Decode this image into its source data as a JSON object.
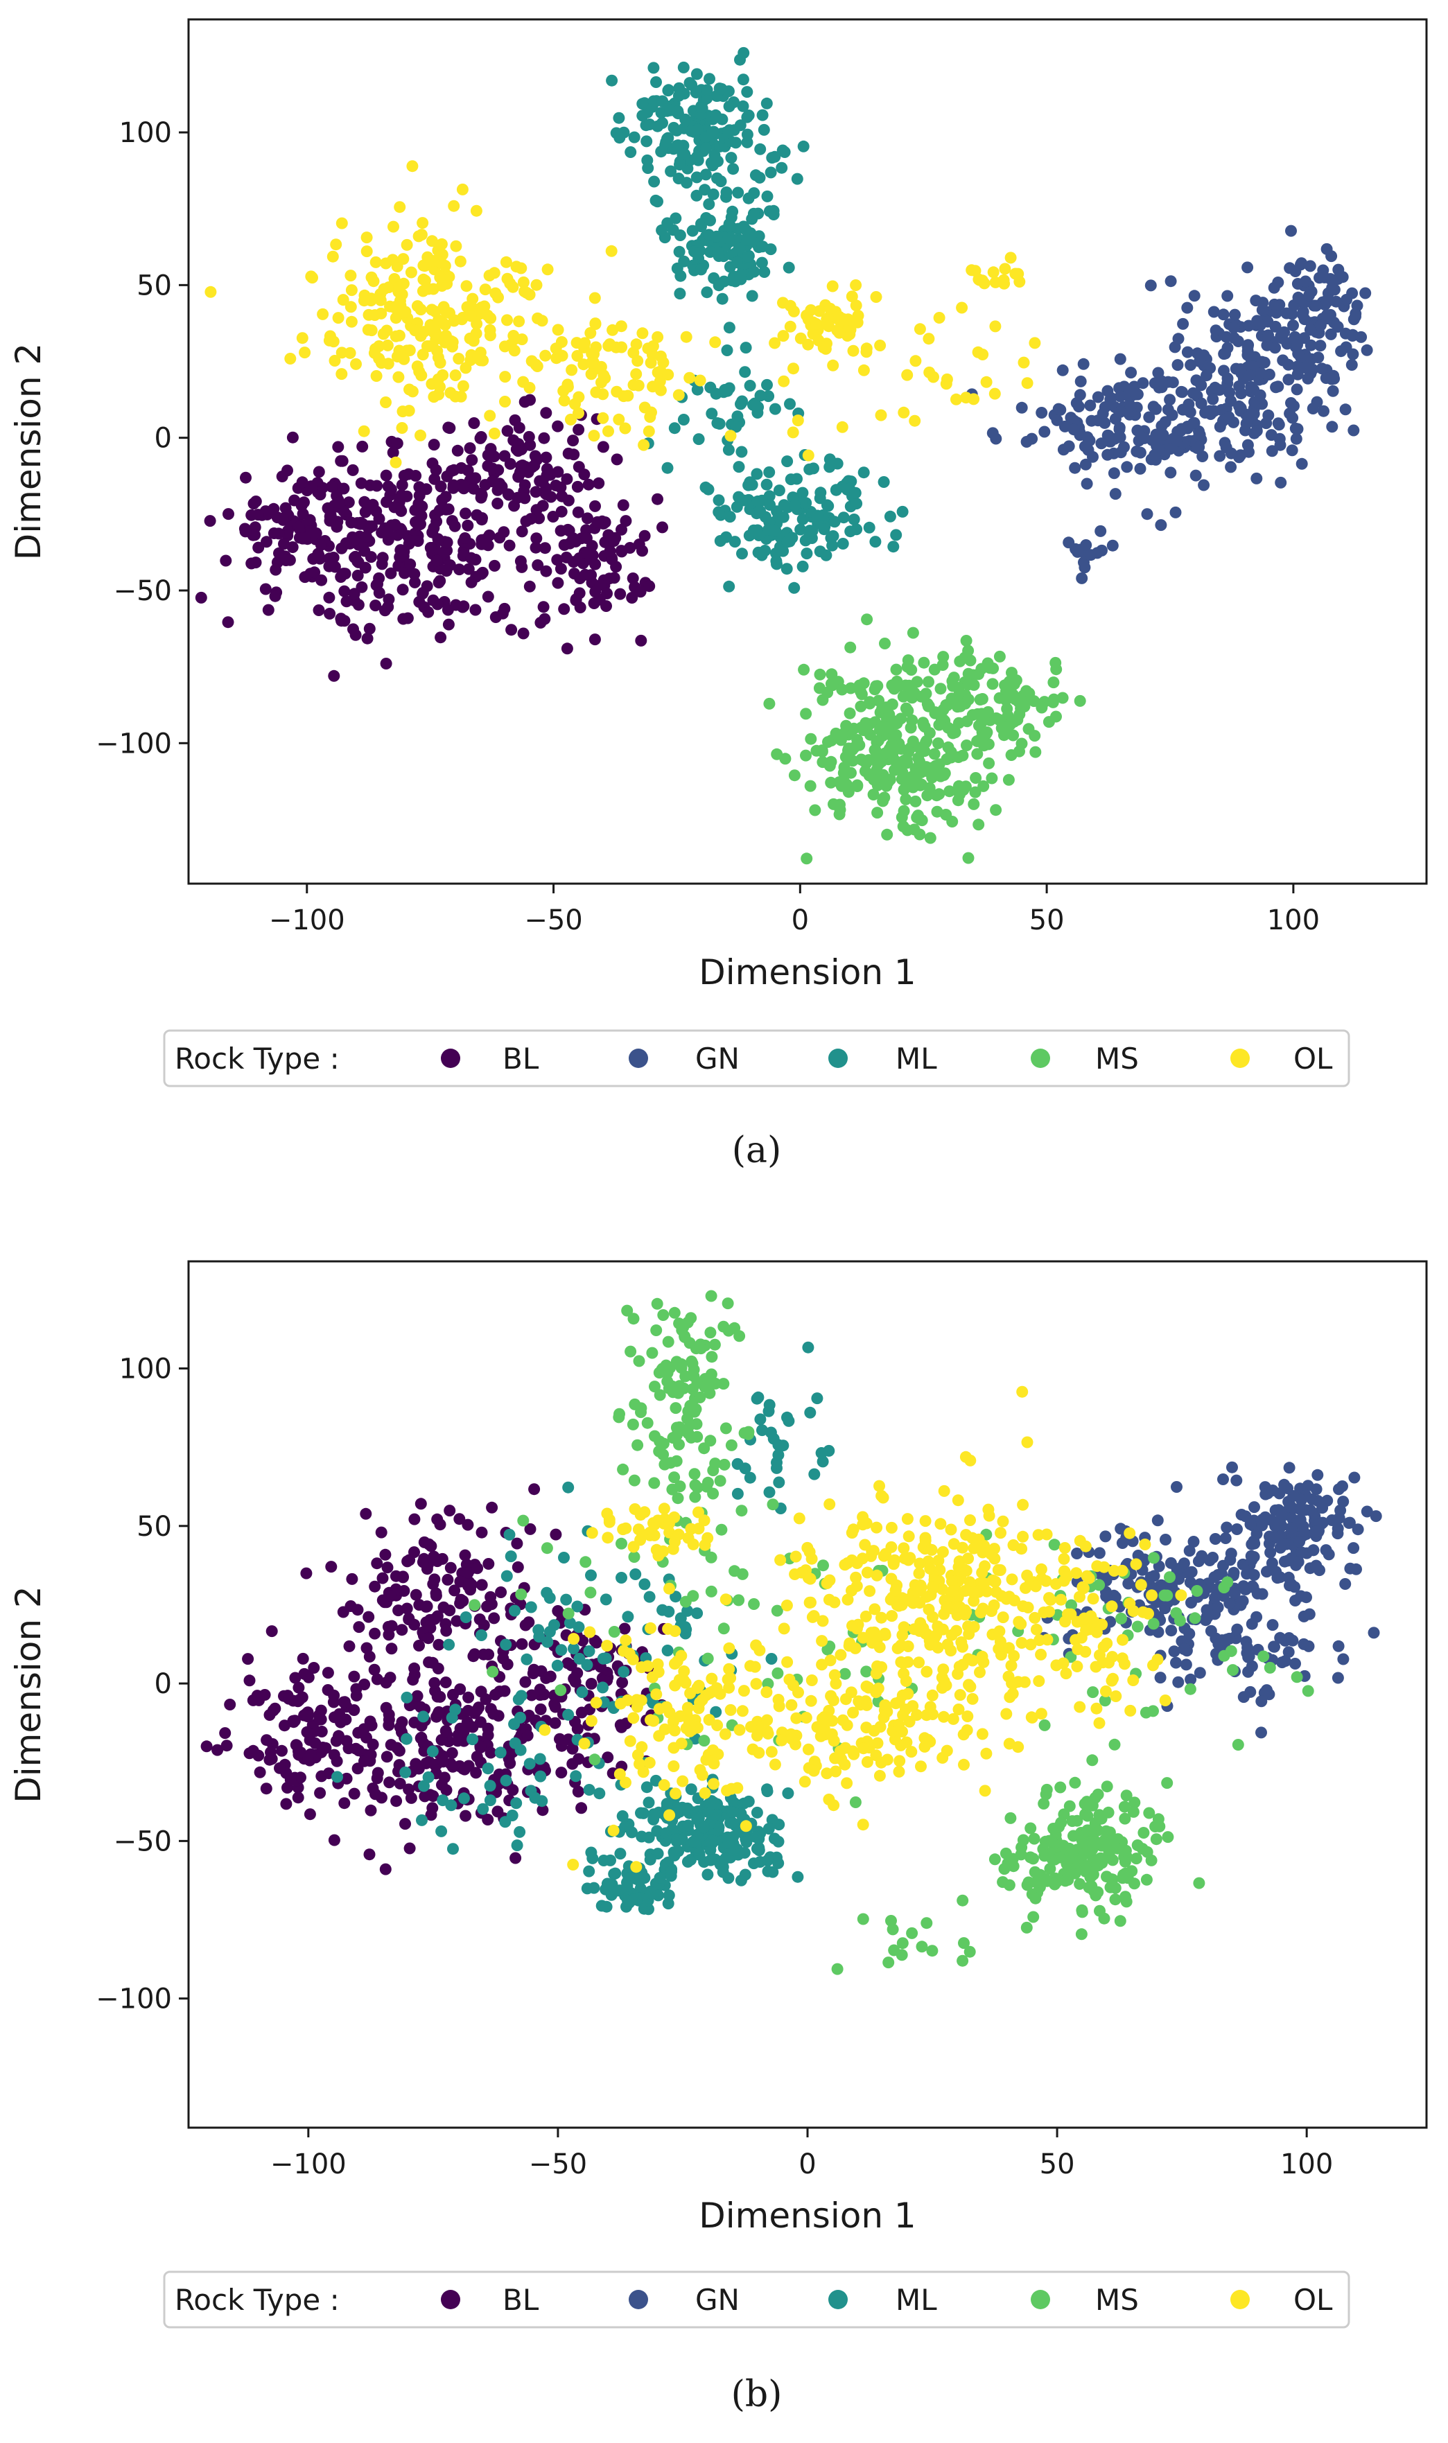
{
  "colors": {
    "BL": "#440154",
    "GN": "#3b528b",
    "ML": "#21918c",
    "MS": "#5ec962",
    "OL": "#fde725"
  },
  "chart_data": [
    {
      "type": "scatter",
      "caption": "(a)",
      "xlabel": "Dimension 1",
      "ylabel": "Dimension 2",
      "xlim": [
        -124,
        127
      ],
      "ylim": [
        -146,
        137
      ],
      "xticks": [
        -100,
        -50,
        0,
        50,
        100
      ],
      "yticks": [
        100,
        50,
        0,
        -50,
        -100
      ],
      "xtick_labels": [
        "−100",
        "−50",
        "0",
        "50",
        "100"
      ],
      "ytick_labels": [
        "100",
        "50",
        "0",
        "−50",
        "−100"
      ],
      "legend": {
        "title": "Rock Type :",
        "placement": "bottom-center",
        "entries": [
          "BL",
          "GN",
          "ML",
          "MS",
          "OL"
        ]
      },
      "series": [
        {
          "name": "BL",
          "clusters": [
            {
              "cx": -98,
              "cy": -30,
              "sx": 9,
              "sy": 11,
              "n": 160
            },
            {
              "cx": -75,
              "cy": -35,
              "sx": 10,
              "sy": 15,
              "n": 200
            },
            {
              "cx": -55,
              "cy": -10,
              "sx": 7,
              "sy": 10,
              "n": 90
            },
            {
              "cx": -42,
              "cy": -40,
              "sx": 6,
              "sy": 12,
              "n": 90
            }
          ]
        },
        {
          "name": "GN",
          "clusters": [
            {
              "cx": 70,
              "cy": 5,
              "sx": 12,
              "sy": 10,
              "n": 180
            },
            {
              "cx": 95,
              "cy": 25,
              "sx": 8,
              "sy": 16,
              "n": 200
            },
            {
              "cx": 107,
              "cy": 42,
              "sx": 4,
              "sy": 8,
              "n": 60
            },
            {
              "cx": 58,
              "cy": -37,
              "sx": 3,
              "sy": 3,
              "n": 15
            }
          ]
        },
        {
          "name": "ML",
          "clusters": [
            {
              "cx": -20,
              "cy": 100,
              "sx": 8,
              "sy": 10,
              "n": 170
            },
            {
              "cx": -16,
              "cy": 65,
              "sx": 6,
              "sy": 9,
              "n": 120
            },
            {
              "cx": 0,
              "cy": -25,
              "sx": 10,
              "sy": 9,
              "n": 140
            },
            {
              "cx": -12,
              "cy": 10,
              "sx": 6,
              "sy": 10,
              "n": 40
            }
          ]
        },
        {
          "name": "MS",
          "clusters": [
            {
              "cx": 20,
              "cy": -100,
              "sx": 10,
              "sy": 14,
              "n": 300
            },
            {
              "cx": 40,
              "cy": -88,
              "sx": 6,
              "sy": 8,
              "n": 80
            }
          ]
        },
        {
          "name": "OL",
          "clusters": [
            {
              "cx": -75,
              "cy": 40,
              "sx": 12,
              "sy": 15,
              "n": 240
            },
            {
              "cx": -38,
              "cy": 20,
              "sx": 8,
              "sy": 10,
              "n": 80
            },
            {
              "cx": 6,
              "cy": 38,
              "sx": 4,
              "sy": 5,
              "n": 50
            },
            {
              "cx": 20,
              "cy": 20,
              "sx": 15,
              "sy": 14,
              "n": 40
            },
            {
              "cx": 40,
              "cy": 53,
              "sx": 3,
              "sy": 2,
              "n": 15
            }
          ]
        }
      ]
    },
    {
      "type": "scatter",
      "caption": "(b)",
      "xlabel": "Dimension 1",
      "ylabel": "Dimension 2",
      "xlim": [
        -124,
        124
      ],
      "ylim": [
        -141,
        134
      ],
      "xticks": [
        -100,
        -50,
        0,
        50,
        100
      ],
      "yticks": [
        100,
        50,
        0,
        -50,
        -100
      ],
      "xtick_labels": [
        "−100",
        "−50",
        "0",
        "50",
        "100"
      ],
      "ytick_labels": [
        "100",
        "50",
        "0",
        "−50",
        "−100"
      ],
      "legend": {
        "title": "Rock Type :",
        "placement": "bottom-center",
        "entries": [
          "BL",
          "GN",
          "ML",
          "MS",
          "OL"
        ]
      },
      "series": [
        {
          "name": "BL",
          "clusters": [
            {
              "cx": -100,
              "cy": -15,
              "sx": 7,
              "sy": 10,
              "n": 120
            },
            {
              "cx": -75,
              "cy": 30,
              "sx": 10,
              "sy": 13,
              "n": 140
            },
            {
              "cx": -70,
              "cy": -20,
              "sx": 12,
              "sy": 14,
              "n": 200
            },
            {
              "cx": -45,
              "cy": 0,
              "sx": 8,
              "sy": 14,
              "n": 100
            }
          ]
        },
        {
          "name": "GN",
          "clusters": [
            {
              "cx": 75,
              "cy": 30,
              "sx": 12,
              "sy": 10,
              "n": 180
            },
            {
              "cx": 98,
              "cy": 50,
              "sx": 6,
              "sy": 8,
              "n": 120
            },
            {
              "cx": 90,
              "cy": 10,
              "sx": 10,
              "sy": 10,
              "n": 60
            }
          ]
        },
        {
          "name": "ML",
          "clusters": [
            {
              "cx": -22,
              "cy": -48,
              "sx": 8,
              "sy": 8,
              "n": 200
            },
            {
              "cx": -35,
              "cy": -65,
              "sx": 4,
              "sy": 4,
              "n": 50
            },
            {
              "cx": -40,
              "cy": 10,
              "sx": 14,
              "sy": 18,
              "n": 80
            },
            {
              "cx": -5,
              "cy": 80,
              "sx": 5,
              "sy": 12,
              "n": 30
            },
            {
              "cx": -65,
              "cy": -30,
              "sx": 12,
              "sy": 12,
              "n": 40
            }
          ]
        },
        {
          "name": "MS",
          "clusters": [
            {
              "cx": 55,
              "cy": -55,
              "sx": 8,
              "sy": 9,
              "n": 200
            },
            {
              "cx": -25,
              "cy": 90,
              "sx": 6,
              "sy": 16,
              "n": 130
            },
            {
              "cx": -15,
              "cy": 20,
              "sx": 20,
              "sy": 20,
              "n": 60
            },
            {
              "cx": 60,
              "cy": 20,
              "sx": 20,
              "sy": 20,
              "n": 50
            },
            {
              "cx": 20,
              "cy": -82,
              "sx": 10,
              "sy": 5,
              "n": 15
            }
          ]
        },
        {
          "name": "OL",
          "clusters": [
            {
              "cx": 25,
              "cy": 30,
              "sx": 14,
              "sy": 15,
              "n": 300
            },
            {
              "cx": 10,
              "cy": -10,
              "sx": 14,
              "sy": 12,
              "n": 150
            },
            {
              "cx": -25,
              "cy": -10,
              "sx": 10,
              "sy": 14,
              "n": 120
            },
            {
              "cx": -30,
              "cy": 50,
              "sx": 5,
              "sy": 4,
              "n": 40
            },
            {
              "cx": 55,
              "cy": 15,
              "sx": 10,
              "sy": 14,
              "n": 80
            }
          ]
        }
      ]
    }
  ]
}
